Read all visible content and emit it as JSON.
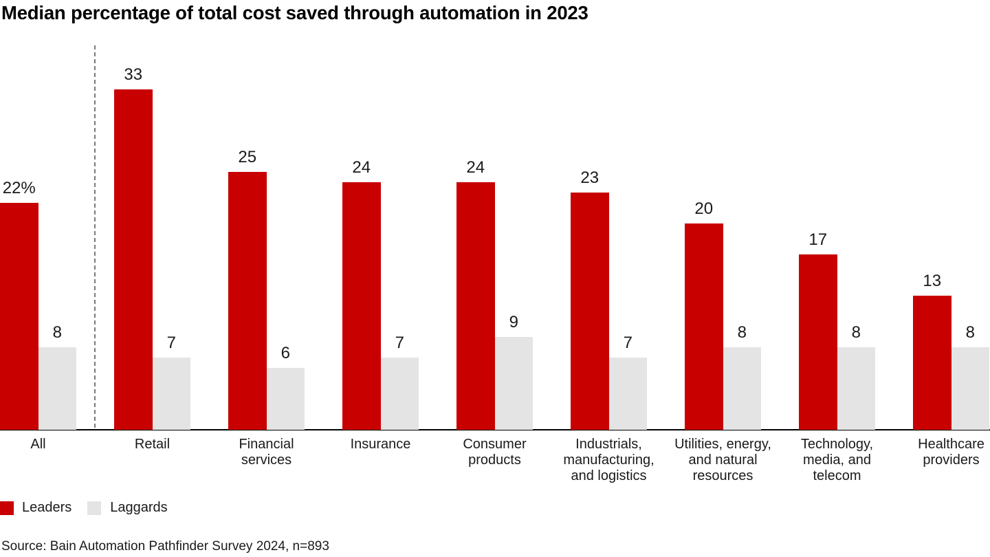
{
  "title": "Median percentage of total cost saved through automation in 2023",
  "source": "Source: Bain Automation Pathfinder Survey 2024, n=893",
  "legend": {
    "items": [
      {
        "label": "Leaders",
        "color": "#C80000"
      },
      {
        "label": "Laggards",
        "color": "#E4E4E4"
      }
    ]
  },
  "chart_data": {
    "type": "bar",
    "title": "Median percentage of total cost saved through automation in 2023",
    "unit": "percent",
    "categories": [
      "All",
      "Retail",
      "Financial\nservices",
      "Insurance",
      "Consumer\nproducts",
      "Industrials,\nmanufacturing,\nand logistics",
      "Utilities, energy,\nand natural\nresources",
      "Technology,\nmedia, and\ntelecom",
      "Healthcare\nproviders"
    ],
    "series": [
      {
        "name": "Leaders",
        "color": "#C80000",
        "values": [
          22,
          33,
          25,
          24,
          24,
          23,
          20,
          17,
          13
        ],
        "value_labels": [
          "22%",
          "33",
          "25",
          "24",
          "24",
          "23",
          "20",
          "17",
          "13"
        ]
      },
      {
        "name": "Laggards",
        "color": "#E4E4E4",
        "values": [
          8,
          7,
          6,
          7,
          9,
          7,
          8,
          8,
          8
        ],
        "value_labels": [
          "8",
          "7",
          "6",
          "7",
          "9",
          "7",
          "8",
          "8",
          "8"
        ]
      }
    ],
    "ylim": [
      0,
      35
    ],
    "y_axis_visible": false,
    "grid": false,
    "value_labels_shown": true,
    "separator": {
      "after_category": "All",
      "style": "dashed-vertical-line"
    },
    "legend_position": "bottom-left"
  }
}
